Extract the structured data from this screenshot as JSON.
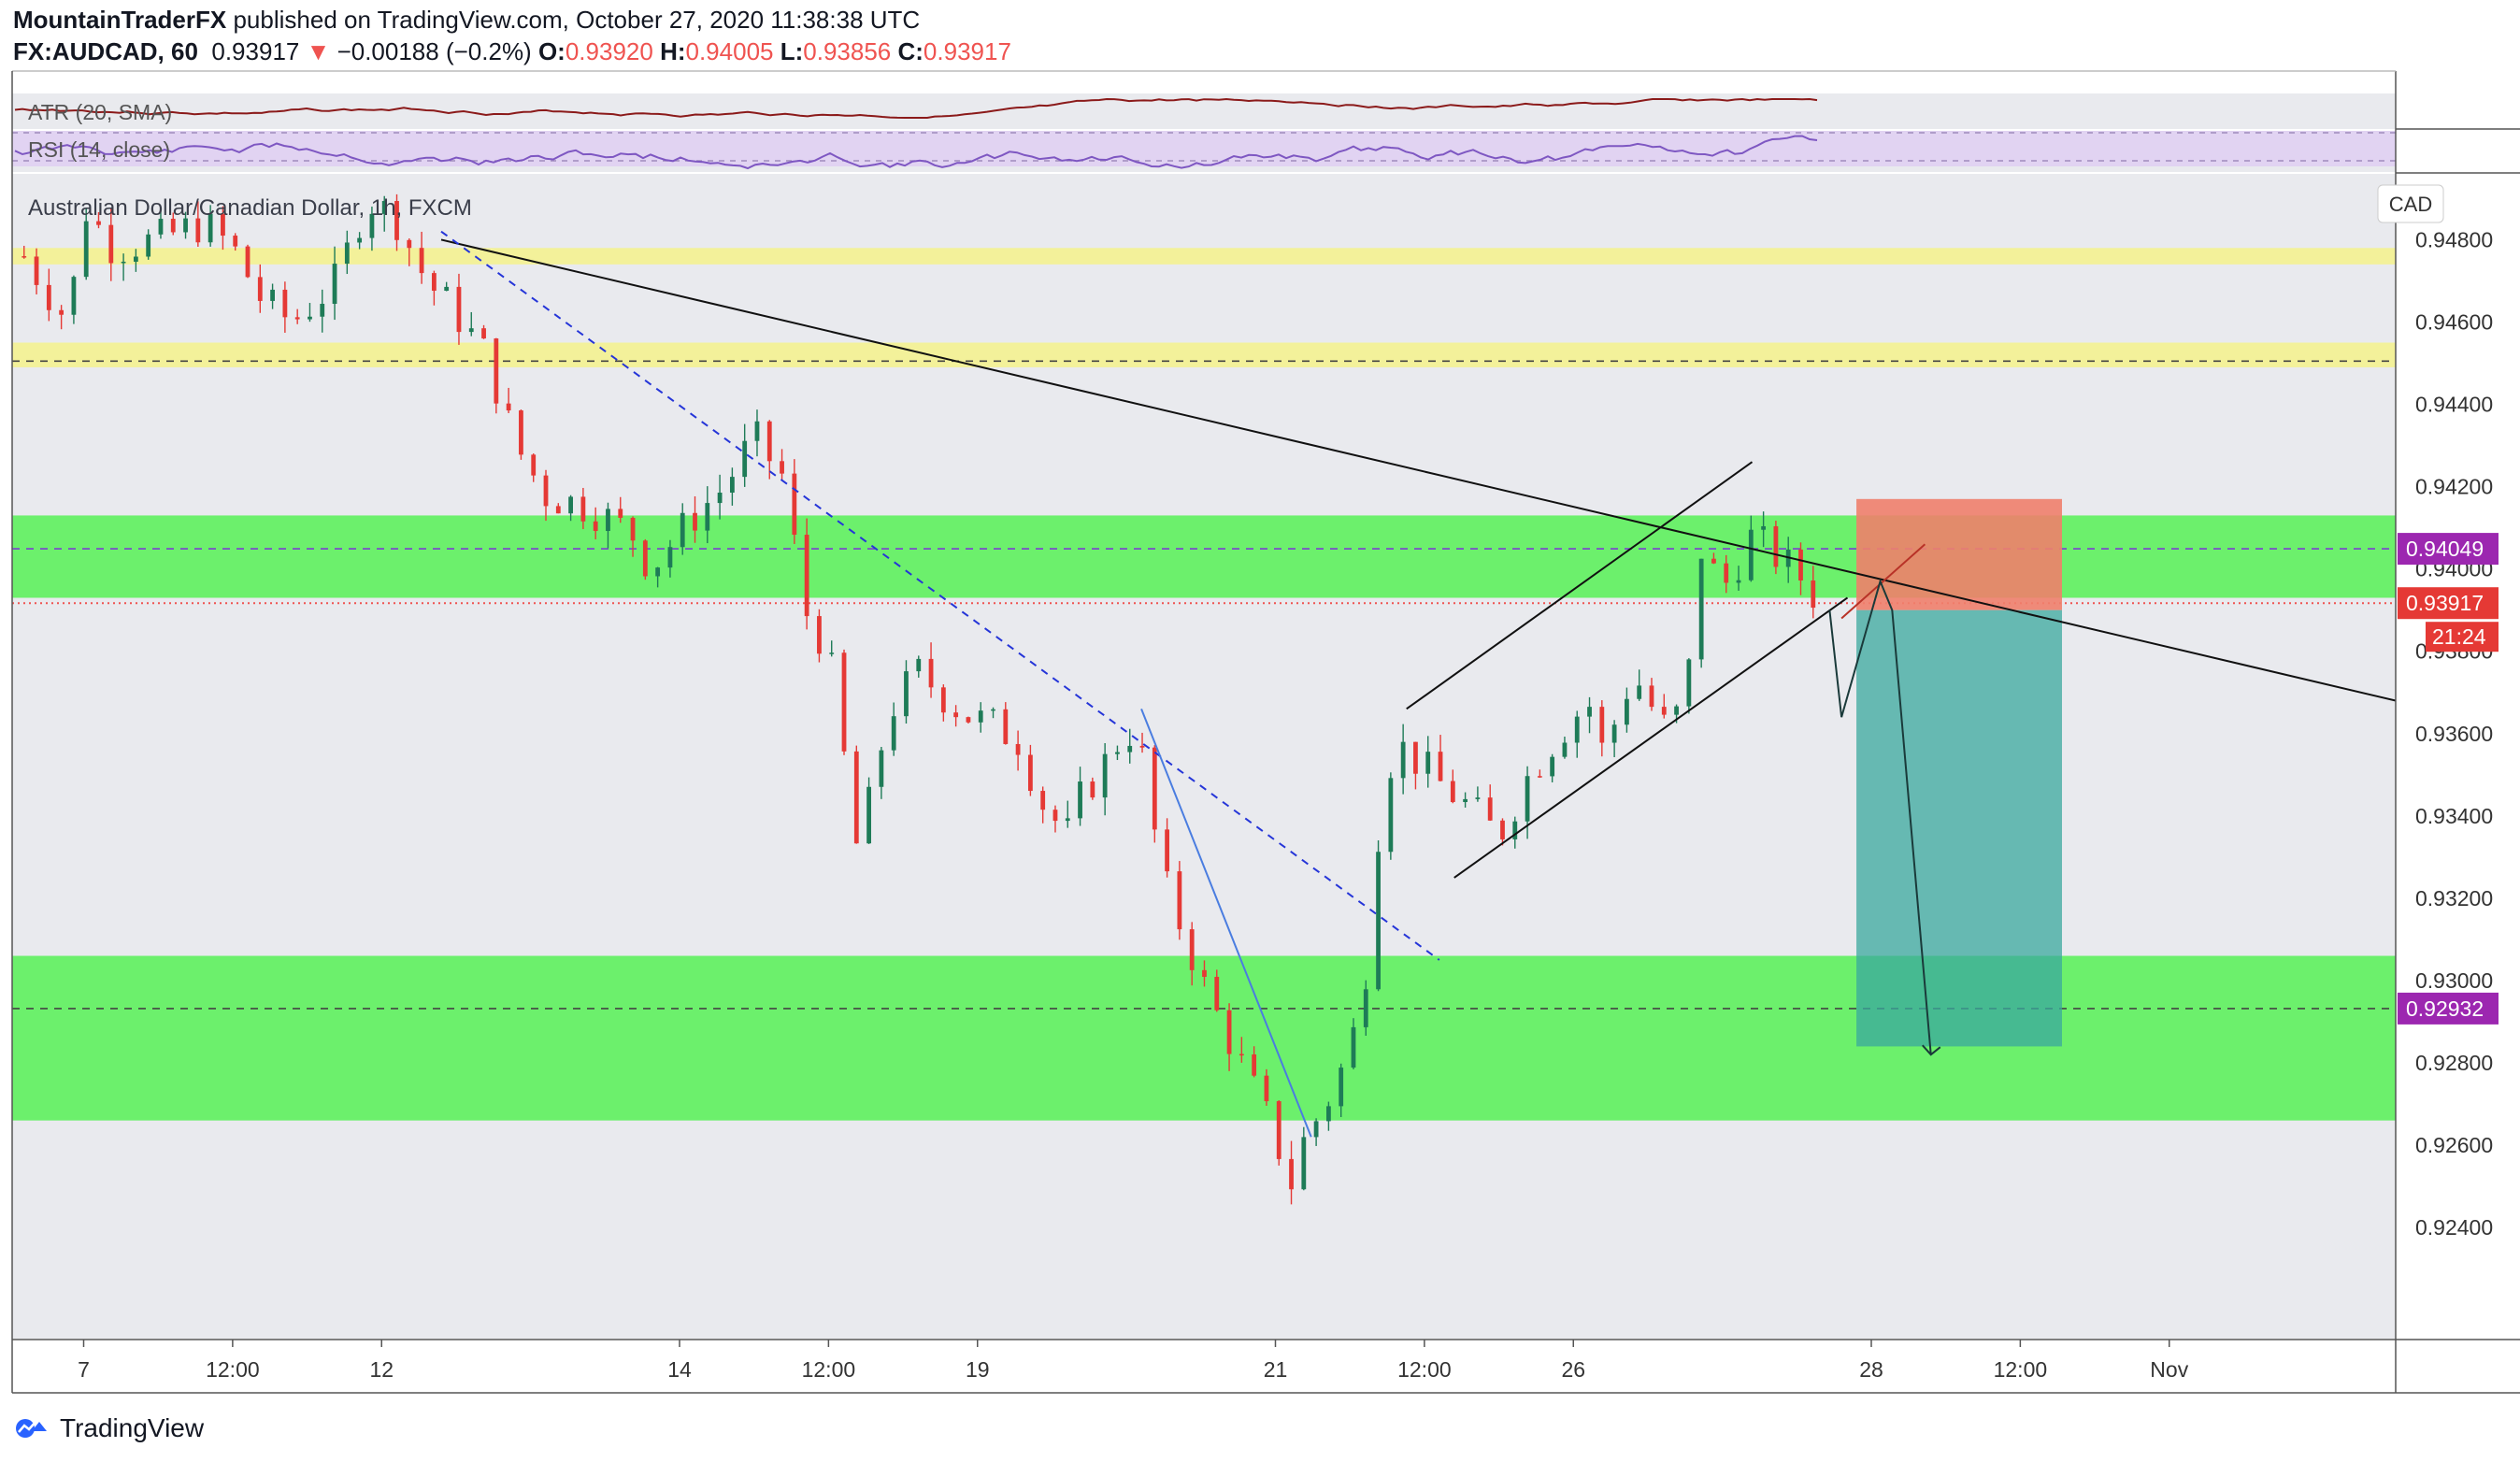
{
  "header": {
    "author": "MountainTraderFX",
    "published_text": " published on TradingView.com, October 27, 2020 11:38:38 UTC",
    "symbol": "FX:AUDCAD, 60",
    "last": "0.93917",
    "change_arrow": "▼",
    "change": "−0.00188 (−0.2%)",
    "o_label": "O:",
    "o": "0.93920",
    "h_label": "H:",
    "h": "0.94005",
    "l_label": "L:",
    "l": "0.93856",
    "c_label": "C:",
    "c": "0.93917"
  },
  "indicators": {
    "atr_label": "ATR (20, SMA)",
    "rsi_label": "RSI (14, close)"
  },
  "footer": {
    "brand": "TradingView",
    "logo_icon": "tradingview-logo-icon"
  },
  "chart_data": {
    "type": "candlestick",
    "title": "Australian Dollar/Canadian Dollar, 1h, FXCM",
    "currency": "CAD",
    "y_ticks": [
      "0.94800",
      "0.94600",
      "0.94400",
      "0.94200",
      "0.94000",
      "0.93800",
      "0.93600",
      "0.93400",
      "0.93200",
      "0.93000",
      "0.92800",
      "0.92600",
      "0.92400"
    ],
    "y_tick_values": [
      0.948,
      0.946,
      0.944,
      0.942,
      0.94,
      0.938,
      0.936,
      0.934,
      0.932,
      0.93,
      0.928,
      0.926,
      0.924
    ],
    "ylim": [
      0.9213,
      0.9496
    ],
    "x_ticks": [
      {
        "label": "7",
        "t": 7.0
      },
      {
        "label": "12:00",
        "t": 7.5
      },
      {
        "label": "12",
        "t": 8.0
      },
      {
        "label": "14",
        "t": 9.0
      },
      {
        "label": "12:00",
        "t": 9.5
      },
      {
        "label": "19",
        "t": 10.0
      },
      {
        "label": "21",
        "t": 11.0
      },
      {
        "label": "12:00",
        "t": 11.5
      },
      {
        "label": "26",
        "t": 12.0
      },
      {
        "label": "28",
        "t": 13.0
      },
      {
        "label": "12:00",
        "t": 13.5
      },
      {
        "label": "Nov",
        "t": 14.0
      }
    ],
    "xlim": [
      6.76,
      14.76
    ],
    "close_path": [
      [
        6.8,
        0.9476
      ],
      [
        6.95,
        0.946
      ],
      [
        7.0,
        0.9488
      ],
      [
        7.1,
        0.9478
      ],
      [
        7.25,
        0.948
      ],
      [
        7.4,
        0.9484
      ],
      [
        7.5,
        0.9478
      ],
      [
        7.6,
        0.9465
      ],
      [
        7.7,
        0.946
      ],
      [
        7.85,
        0.947
      ],
      [
        7.95,
        0.949
      ],
      [
        8.05,
        0.9485
      ],
      [
        8.15,
        0.947
      ],
      [
        8.25,
        0.9462
      ],
      [
        8.35,
        0.9452
      ],
      [
        8.45,
        0.943
      ],
      [
        8.55,
        0.9418
      ],
      [
        8.7,
        0.9415
      ],
      [
        8.85,
        0.9408
      ],
      [
        8.9,
        0.94
      ],
      [
        9.05,
        0.9413
      ],
      [
        9.15,
        0.942
      ],
      [
        9.25,
        0.9432
      ],
      [
        9.35,
        0.9422
      ],
      [
        9.42,
        0.939
      ],
      [
        9.5,
        0.938
      ],
      [
        9.6,
        0.933
      ],
      [
        9.7,
        0.9365
      ],
      [
        9.8,
        0.9375
      ],
      [
        9.95,
        0.9365
      ],
      [
        10.05,
        0.9362
      ],
      [
        10.15,
        0.9358
      ],
      [
        10.2,
        0.9345
      ],
      [
        10.3,
        0.9335
      ],
      [
        10.35,
        0.9345
      ],
      [
        10.45,
        0.9355
      ],
      [
        10.5,
        0.9362
      ],
      [
        10.55,
        0.9355
      ],
      [
        10.62,
        0.9325
      ],
      [
        10.7,
        0.931
      ],
      [
        10.78,
        0.9295
      ],
      [
        10.85,
        0.9285
      ],
      [
        10.95,
        0.927
      ],
      [
        11.0,
        0.9262
      ],
      [
        11.05,
        0.925
      ],
      [
        11.1,
        0.9262
      ],
      [
        11.17,
        0.927
      ],
      [
        11.25,
        0.9283
      ],
      [
        11.3,
        0.93
      ],
      [
        11.35,
        0.934
      ],
      [
        11.4,
        0.9358
      ],
      [
        11.45,
        0.9355
      ],
      [
        11.55,
        0.9348
      ],
      [
        11.65,
        0.9342
      ],
      [
        11.75,
        0.9335
      ],
      [
        11.85,
        0.935
      ],
      [
        11.95,
        0.936
      ],
      [
        12.05,
        0.9368
      ],
      [
        12.1,
        0.9355
      ],
      [
        12.2,
        0.9375
      ],
      [
        12.25,
        0.9368
      ],
      [
        12.32,
        0.936
      ],
      [
        12.38,
        0.937
      ],
      [
        12.43,
        0.9405
      ],
      [
        12.5,
        0.9395
      ],
      [
        12.6,
        0.9408
      ],
      [
        12.7,
        0.9402
      ],
      [
        12.78,
        0.9397
      ],
      [
        12.82,
        0.9392
      ]
    ],
    "zones": [
      {
        "color": "yellow",
        "from": 0.9474,
        "to": 0.9478
      },
      {
        "color": "yellow",
        "from": 0.9449,
        "to": 0.9455
      },
      {
        "color": "green",
        "from": 0.9393,
        "to": 0.9413
      },
      {
        "color": "green",
        "from": 0.9266,
        "to": 0.9306
      }
    ],
    "dashed_levels": [
      0.94505,
      0.94049,
      0.92932
    ],
    "current_price": {
      "value": 0.93917,
      "label": "0.93917",
      "countdown": "21:24"
    },
    "marked_levels": [
      {
        "value": 0.94049,
        "label": "0.94049",
        "color": "#9c27b0"
      },
      {
        "value": 0.92932,
        "label": "0.92932",
        "color": "#9c27b0"
      }
    ],
    "position": {
      "type": "short",
      "entry": 0.939,
      "stop": 0.9417,
      "target": 0.9284,
      "t_start": 12.95,
      "t_end": 13.64
    },
    "trendlines": [
      {
        "style": "solid-black",
        "from": [
          8.2,
          0.948
        ],
        "to": [
          14.76,
          0.9368
        ]
      },
      {
        "style": "dashed-blue",
        "from": [
          8.2,
          0.9482
        ],
        "to": [
          11.55,
          0.9305
        ]
      },
      {
        "style": "solid-blue",
        "from": [
          10.55,
          0.9366
        ],
        "to": [
          11.12,
          0.9262
        ]
      },
      {
        "style": "solid-black",
        "from": [
          11.44,
          0.9366
        ],
        "to": [
          12.6,
          0.9426
        ]
      },
      {
        "style": "solid-black",
        "from": [
          11.6,
          0.9325
        ],
        "to": [
          12.92,
          0.9393
        ]
      },
      {
        "style": "solid-red",
        "from": [
          12.9,
          0.9388
        ],
        "to": [
          13.18,
          0.9406
        ]
      }
    ],
    "projection_path": [
      [
        12.86,
        0.939
      ],
      [
        12.9,
        0.9364
      ],
      [
        13.03,
        0.9397
      ],
      [
        13.07,
        0.939
      ],
      [
        13.2,
        0.9282
      ]
    ],
    "legend": "none",
    "grid": false
  }
}
